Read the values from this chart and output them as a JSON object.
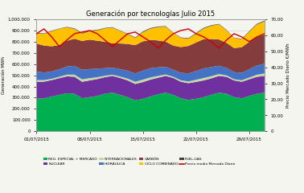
{
  "title": "Generación por tecnologías Julio 2015",
  "ylabel_left": "Generación MWh",
  "ylabel_right": "Precio Mercado Diario €/MWh",
  "xlim": [
    0,
    30
  ],
  "ylim_left": [
    0,
    1000000
  ],
  "ylim_right": [
    0,
    70
  ],
  "yticks_left": [
    0,
    100000,
    200000,
    300000,
    400000,
    500000,
    600000,
    700000,
    800000,
    900000,
    1000000
  ],
  "ytick_labels_left": [
    "0",
    "100.000",
    "200.000",
    "300.000",
    "400.000",
    "500.000",
    "600.000",
    "700.000",
    "800.000",
    "900.000",
    "1.000.000"
  ],
  "yticks_right": [
    0,
    10,
    20,
    30,
    40,
    50,
    60,
    70
  ],
  "ytick_labels_right": [
    "0",
    "10,00",
    "20,00",
    "30,00",
    "40,00",
    "50,00",
    "60,00",
    "70,00"
  ],
  "xticks": [
    0,
    7,
    14,
    21,
    28
  ],
  "xtick_labels": [
    "01/07/2015",
    "08/07/2015",
    "15/07/2015",
    "22/07/2015",
    "29/07/2015"
  ],
  "colors": {
    "REG_ESPECIAL_MERCADO": "#00b050",
    "NUCLEAR": "#7030a0",
    "INTERNACIONALES": "#c8d9a0",
    "HIDRAULICA": "#4472c4",
    "CARBON": "#843c3c",
    "CICLO_COMBINADO": "#ffc000",
    "FUEL_GAS": "#404040",
    "PRECIO": "#cc0000"
  },
  "legend": [
    {
      "label": "REG. ESPECIAL + MERCADO",
      "color": "#00b050",
      "type": "area"
    },
    {
      "label": "NUCLEAR",
      "color": "#7030a0",
      "type": "area"
    },
    {
      "label": "INTERNACIONALES",
      "color": "#c8d9a0",
      "type": "area"
    },
    {
      "label": "HIDRÁULICA",
      "color": "#4472c4",
      "type": "area"
    },
    {
      "label": "CARBÓN",
      "color": "#843c3c",
      "type": "area"
    },
    {
      "label": "CICLO COMBINADO",
      "color": "#ffc000",
      "type": "area"
    },
    {
      "label": "FUEL-GAS",
      "color": "#404040",
      "type": "area"
    },
    {
      "label": "Precio medio Mercado Diario",
      "color": "#cc0000",
      "type": "line"
    }
  ],
  "background_color": "#f5f5f0",
  "grid_color": "#cccccc",
  "reg_especial": [
    290000,
    295000,
    310000,
    325000,
    340000,
    335000,
    295000,
    305000,
    315000,
    335000,
    345000,
    325000,
    305000,
    275000,
    290000,
    310000,
    330000,
    345000,
    325000,
    295000,
    280000,
    290000,
    305000,
    325000,
    345000,
    335000,
    305000,
    295000,
    315000,
    335000,
    345000
  ],
  "nuclear": [
    150000,
    148000,
    147000,
    149000,
    150000,
    152000,
    147000,
    149000,
    151000,
    148000,
    149000,
    151000,
    149000,
    147000,
    149000,
    151000,
    148000,
    149000,
    151000,
    147000,
    149000,
    151000,
    149000,
    147000,
    149000,
    151000,
    149000,
    147000,
    149000,
    151000,
    149000
  ],
  "internacionales": [
    18000,
    14000,
    12000,
    13000,
    16000,
    19000,
    22000,
    20000,
    17000,
    13000,
    11000,
    13000,
    16000,
    20000,
    22000,
    20000,
    17000,
    13000,
    11000,
    13000,
    16000,
    19000,
    22000,
    20000,
    17000,
    13000,
    11000,
    13000,
    16000,
    19000,
    22000
  ],
  "hidraulica": [
    75000,
    68000,
    65000,
    67000,
    72000,
    78000,
    85000,
    82000,
    76000,
    68000,
    63000,
    67000,
    70000,
    75000,
    80000,
    82000,
    76000,
    68000,
    63000,
    67000,
    72000,
    78000,
    85000,
    82000,
    74000,
    68000,
    63000,
    67000,
    74000,
    82000,
    88000
  ],
  "carbon": [
    250000,
    240000,
    225000,
    215000,
    230000,
    242000,
    258000,
    262000,
    250000,
    235000,
    218000,
    228000,
    240000,
    252000,
    262000,
    253000,
    240000,
    225000,
    215000,
    230000,
    245000,
    255000,
    262000,
    250000,
    235000,
    223000,
    215000,
    228000,
    245000,
    255000,
    260000
  ],
  "ciclo_combinado": [
    90000,
    105000,
    135000,
    145000,
    120000,
    88000,
    65000,
    75000,
    92000,
    120000,
    140000,
    112000,
    88000,
    65000,
    82000,
    100000,
    120000,
    135000,
    112000,
    82000,
    65000,
    78000,
    95000,
    118000,
    135000,
    112000,
    88000,
    72000,
    90000,
    112000,
    118000
  ],
  "fuel_gas": [
    5000,
    4000,
    4000,
    3000,
    4000,
    5000,
    6000,
    6000,
    5000,
    4000,
    4000,
    3000,
    4000,
    5000,
    6000,
    6000,
    5000,
    4000,
    3000,
    4000,
    5000,
    6000,
    6000,
    5000,
    4000,
    4000,
    3000,
    4000,
    5000,
    6000,
    6000
  ],
  "precio": [
    61,
    64,
    59,
    53,
    57,
    61,
    62,
    63,
    61,
    57,
    53,
    57,
    61,
    62,
    59,
    56,
    52,
    57,
    61,
    63,
    64,
    61,
    59,
    56,
    52,
    57,
    61,
    59,
    56,
    59,
    61
  ]
}
